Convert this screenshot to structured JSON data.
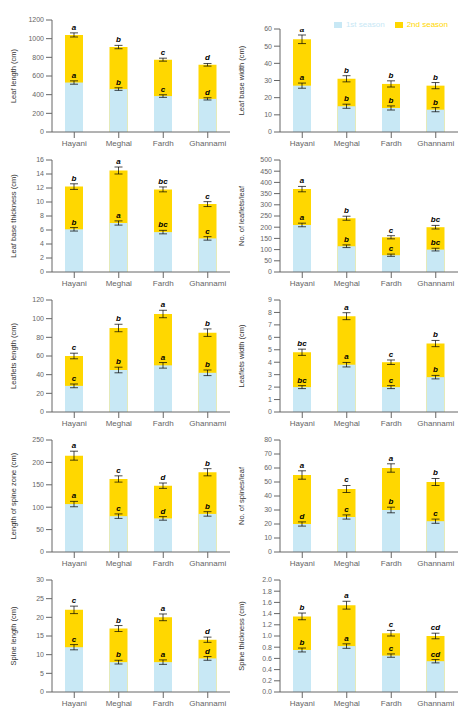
{
  "chart_data": [
    {
      "type": "bar",
      "ylabel": "Leaf length (cm)",
      "categories": [
        "Hayani",
        "Meghal",
        "Fardh",
        "Ghannami"
      ],
      "ylim": [
        0,
        1200
      ],
      "yticks": [
        0,
        200,
        400,
        600,
        800,
        1000,
        1200
      ],
      "grid": false,
      "series": [
        {
          "name": "2nd season",
          "color": "#ffd700",
          "values": [
            1040,
            910,
            775,
            720
          ],
          "errors": [
            22,
            18,
            16,
            14
          ],
          "annotations": [
            "a",
            "b",
            "c",
            "d"
          ]
        },
        {
          "name": "1st season",
          "color": "#c8e8f5",
          "values": [
            530,
            460,
            385,
            355
          ],
          "errors": [
            18,
            14,
            14,
            12
          ],
          "annotations": [
            "a",
            "b",
            "c",
            "d"
          ]
        }
      ]
    },
    {
      "type": "bar",
      "ylabel": "Leaf base width (cm)",
      "categories": [
        "Hayani",
        "Meghal",
        "Fardh",
        "Ghannami"
      ],
      "ylim": [
        0,
        60
      ],
      "yticks": [
        0,
        10,
        20,
        30,
        40,
        50,
        60
      ],
      "grid": false,
      "legend": "upper right",
      "series": [
        {
          "name": "2nd season",
          "color": "#ffd700",
          "values": [
            54,
            31,
            28,
            27
          ],
          "errors": [
            2.5,
            1.8,
            1.8,
            1.8
          ],
          "annotations": [
            "a",
            "b",
            "b",
            "b"
          ]
        },
        {
          "name": "1st season",
          "color": "#c8e8f5",
          "values": [
            27,
            15,
            14,
            13
          ],
          "errors": [
            1.5,
            1.2,
            1.2,
            1.2
          ],
          "annotations": [
            "a",
            "b",
            "b",
            "b"
          ]
        }
      ]
    },
    {
      "type": "bar",
      "ylabel": "Leaf base thickness (cm)",
      "categories": [
        "Hayani",
        "Meghal",
        "Fardh",
        "Ghannami"
      ],
      "ylim": [
        0,
        16
      ],
      "yticks": [
        0,
        2,
        4,
        6,
        8,
        10,
        12,
        14,
        16
      ],
      "grid": false,
      "series": [
        {
          "name": "2nd season",
          "color": "#ffd700",
          "values": [
            12.2,
            14.5,
            11.8,
            9.7
          ],
          "errors": [
            0.4,
            0.5,
            0.35,
            0.35
          ],
          "annotations": [
            "b",
            "a",
            "bc",
            "c"
          ]
        },
        {
          "name": "1st season",
          "color": "#c8e8f5",
          "values": [
            6.1,
            7.0,
            5.7,
            4.8
          ],
          "errors": [
            0.25,
            0.3,
            0.25,
            0.25
          ],
          "annotations": [
            "b",
            "a",
            "bc",
            "c"
          ]
        }
      ]
    },
    {
      "type": "bar",
      "ylabel": "No. of leaflets/leaf",
      "categories": [
        "Hayani",
        "Meghal",
        "Fardh",
        "Ghannami"
      ],
      "ylim": [
        0,
        500
      ],
      "yticks": [
        0,
        50,
        100,
        150,
        200,
        250,
        300,
        350,
        400,
        450,
        500
      ],
      "grid": false,
      "series": [
        {
          "name": "2nd season",
          "color": "#ffd700",
          "values": [
            370,
            240,
            155,
            200
          ],
          "errors": [
            12,
            9,
            7,
            8
          ],
          "annotations": [
            "a",
            "b",
            "c",
            "bc"
          ]
        },
        {
          "name": "1st season",
          "color": "#c8e8f5",
          "values": [
            210,
            115,
            75,
            100
          ],
          "errors": [
            8,
            6,
            5,
            6
          ],
          "annotations": [
            "a",
            "b",
            "c",
            "bc"
          ]
        }
      ]
    },
    {
      "type": "bar",
      "ylabel": "Leaflets length (cm)",
      "categories": [
        "Hayani",
        "Meghal",
        "Fardh",
        "Ghannami"
      ],
      "ylim": [
        0,
        120
      ],
      "yticks": [
        0,
        20,
        40,
        60,
        80,
        100,
        120
      ],
      "grid": false,
      "series": [
        {
          "name": "2nd season",
          "color": "#ffd700",
          "values": [
            60,
            90,
            105,
            85
          ],
          "errors": [
            3,
            4,
            4,
            4
          ],
          "annotations": [
            "c",
            "b",
            "a",
            "b"
          ]
        },
        {
          "name": "1st season",
          "color": "#c8e8f5",
          "values": [
            28,
            45,
            50,
            42
          ],
          "errors": [
            2,
            3,
            3,
            3
          ],
          "annotations": [
            "c",
            "b",
            "a",
            "b"
          ]
        }
      ]
    },
    {
      "type": "bar",
      "ylabel": "Leaflets width (cm)",
      "categories": [
        "Hayani",
        "Meghal",
        "Fardh",
        "Ghannami"
      ],
      "ylim": [
        0,
        9
      ],
      "yticks": [
        0,
        1,
        2,
        3,
        4,
        5,
        6,
        7,
        8,
        9
      ],
      "grid": false,
      "series": [
        {
          "name": "2nd season",
          "color": "#ffd700",
          "values": [
            4.8,
            7.7,
            4.0,
            5.5
          ],
          "errors": [
            0.25,
            0.28,
            0.18,
            0.25
          ],
          "annotations": [
            "bc",
            "a",
            "c",
            "b"
          ]
        },
        {
          "name": "1st season",
          "color": "#c8e8f5",
          "values": [
            2.0,
            3.8,
            2.0,
            2.8
          ],
          "errors": [
            0.12,
            0.18,
            0.12,
            0.14
          ],
          "annotations": [
            "bc",
            "a",
            "c",
            "b"
          ]
        }
      ]
    },
    {
      "type": "bar",
      "ylabel": "Length of spine zone (cm)",
      "categories": [
        "Hayani",
        "Meghal",
        "Fardh",
        "Ghannami"
      ],
      "ylim": [
        0,
        250
      ],
      "yticks": [
        0,
        50,
        100,
        150,
        200,
        250
      ],
      "grid": false,
      "series": [
        {
          "name": "2nd season",
          "color": "#ffd700",
          "values": [
            215,
            163,
            148,
            178
          ],
          "errors": [
            10,
            7,
            6,
            8
          ],
          "annotations": [
            "a",
            "c",
            "d",
            "b"
          ]
        },
        {
          "name": "1st season",
          "color": "#c8e8f5",
          "values": [
            107,
            80,
            75,
            85
          ],
          "errors": [
            6,
            5,
            4,
            5
          ],
          "annotations": [
            "a",
            "c",
            "d",
            "b"
          ]
        }
      ]
    },
    {
      "type": "bar",
      "ylabel": "No. of spines/leaf",
      "categories": [
        "Hayani",
        "Meghal",
        "Fardh",
        "Ghannami"
      ],
      "ylim": [
        0,
        80
      ],
      "yticks": [
        0,
        10,
        20,
        30,
        40,
        50,
        60,
        70,
        80
      ],
      "grid": false,
      "series": [
        {
          "name": "2nd season",
          "color": "#ffd700",
          "values": [
            55,
            45,
            60,
            50
          ],
          "errors": [
            3,
            2.5,
            3,
            2.5
          ],
          "annotations": [
            "a",
            "c",
            "a",
            "b"
          ]
        },
        {
          "name": "1st season",
          "color": "#c8e8f5",
          "values": [
            20,
            25,
            30,
            22
          ],
          "errors": [
            1.5,
            1.5,
            2,
            1.5
          ],
          "annotations": [
            "d",
            "c",
            "b",
            "c"
          ]
        }
      ]
    },
    {
      "type": "bar",
      "ylabel": "Spine length (cm)",
      "categories": [
        "Hayani",
        "Meghal",
        "Fardh",
        "Ghannami"
      ],
      "ylim": [
        0,
        30
      ],
      "yticks": [
        0,
        5,
        10,
        15,
        20,
        25,
        30
      ],
      "grid": false,
      "series": [
        {
          "name": "2nd season",
          "color": "#ffd700",
          "values": [
            22,
            17,
            20,
            14
          ],
          "errors": [
            1.0,
            0.8,
            0.9,
            0.7
          ],
          "annotations": [
            "c",
            "b",
            "a",
            "d"
          ]
        },
        {
          "name": "1st season",
          "color": "#c8e8f5",
          "values": [
            12,
            8,
            8,
            9
          ],
          "errors": [
            0.7,
            0.5,
            0.6,
            0.5
          ],
          "annotations": [
            "c",
            "b",
            "a",
            "d"
          ]
        }
      ]
    },
    {
      "type": "bar",
      "ylabel": "Spine thickness (cm)",
      "categories": [
        "Hayani",
        "Meghal",
        "Fardh",
        "Ghannami"
      ],
      "ylim": [
        0,
        2.0
      ],
      "yticks": [
        {
          "value": 0,
          "label": "0.0"
        },
        0.2,
        0.4,
        0.6,
        0.8,
        {
          "value": 1,
          "label": "1.0"
        },
        1.2,
        1.4,
        1.6,
        1.8,
        {
          "value": 2,
          "label": "2.0"
        }
      ],
      "grid": false,
      "series": [
        {
          "name": "2nd season",
          "color": "#ffd700",
          "values": [
            1.35,
            1.55,
            1.05,
            1.0
          ],
          "errors": [
            0.06,
            0.07,
            0.05,
            0.05
          ],
          "annotations": [
            "b",
            "a",
            "c",
            "cd"
          ]
        },
        {
          "name": "1st season",
          "color": "#c8e8f5",
          "values": [
            0.75,
            0.82,
            0.65,
            0.55
          ],
          "errors": [
            0.035,
            0.04,
            0.03,
            0.03
          ],
          "annotations": [
            "b",
            "a",
            "c",
            "cd"
          ]
        }
      ]
    }
  ]
}
